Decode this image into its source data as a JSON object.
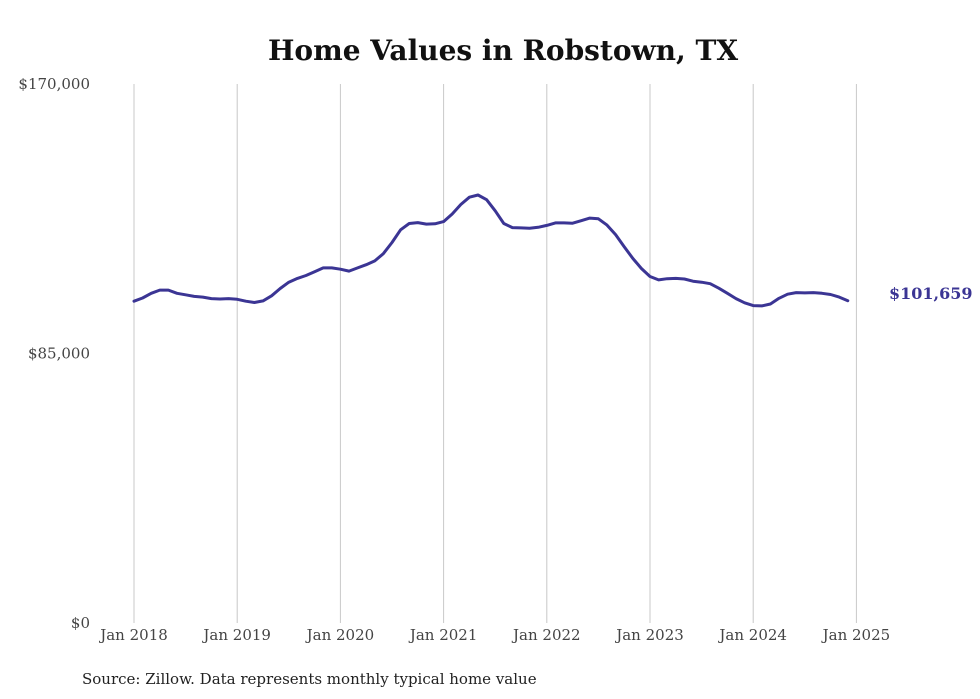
{
  "chart_data": {
    "type": "line",
    "title": "Home Values in Robstown, TX",
    "source": "Source: Zillow. Data represents monthly typical home value",
    "ylim": [
      0,
      170000
    ],
    "y_ticks": [
      {
        "value": 0,
        "label": "$0"
      },
      {
        "value": 85000,
        "label": "$85,000"
      },
      {
        "value": 170000,
        "label": "$170,000"
      }
    ],
    "x_ticks": [
      "Jan 2018",
      "Jan 2019",
      "Jan 2020",
      "Jan 2021",
      "Jan 2022",
      "Jan 2023",
      "Jan 2024",
      "Jan 2025"
    ],
    "x_start": "2018-01",
    "grid": "vertical",
    "line_color": "#3b3594",
    "end_label": "$101,659",
    "series": [
      {
        "values": [
          101500,
          102500,
          104000,
          105000,
          105000,
          104000,
          103500,
          103000,
          102800,
          102300,
          102200,
          102300,
          102100,
          101500,
          101100,
          101600,
          103200,
          105500,
          107500,
          108700,
          109600,
          110800,
          112000,
          112000,
          111600,
          111000,
          112000,
          113000,
          114200,
          116500,
          120000,
          124000,
          126000,
          126300,
          125800,
          125900,
          126600,
          129000,
          132000,
          134300,
          135000,
          133500,
          130000,
          126000,
          124700,
          124600,
          124500,
          124800,
          125400,
          126200,
          126200,
          126100,
          126900,
          127700,
          127500,
          125500,
          122500,
          118700,
          115000,
          111800,
          109300,
          108200,
          108600,
          108700,
          108500,
          107800,
          107500,
          107000,
          105600,
          104000,
          102300,
          101000,
          100100,
          100000,
          100600,
          102400,
          103700,
          104200,
          104100,
          104200,
          104000,
          103600,
          102800,
          101659
        ]
      }
    ]
  }
}
